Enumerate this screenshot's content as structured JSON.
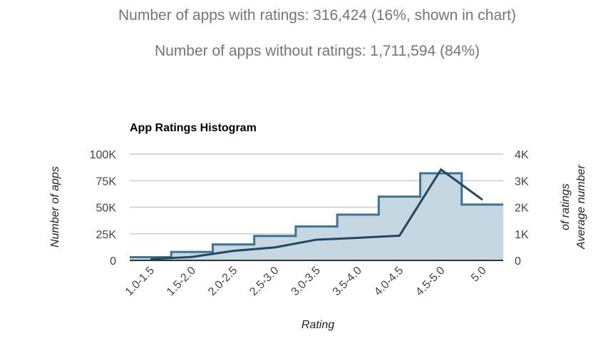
{
  "stats": {
    "with_ratings": "Number of apps with ratings: 316,424 (16%, shown in chart)",
    "without_ratings": "Number of apps without ratings: 1,711,594 (84%)"
  },
  "chart_data": {
    "type": "bar",
    "title": "App Ratings Histogram",
    "xlabel": "Rating",
    "ylabel": "Number of apps",
    "ylabel_right": [
      "of ratings",
      "Average number"
    ],
    "categories": [
      "1.0-1.5",
      "1.5-2.0",
      "2.0-2.5",
      "2.5-3.0",
      "3.0-3.5",
      "3.5-4.0",
      "4.0-4.5",
      "4.5-5.0",
      "5.0"
    ],
    "ylim": [
      0,
      100000
    ],
    "ylim_right": [
      0,
      4000
    ],
    "yticks": [
      "0",
      "25K",
      "50K",
      "75K",
      "100K"
    ],
    "yticks_right": [
      "0",
      "1K",
      "2K",
      "3K",
      "4K"
    ],
    "grid": true,
    "series": [
      {
        "type": "step-area",
        "axis": "left",
        "color": "#3d7396",
        "fill": "#c5d7e1",
        "values": [
          3000,
          8000,
          15000,
          23000,
          32000,
          43000,
          60000,
          82000,
          52500
        ]
      },
      {
        "type": "line",
        "axis": "right",
        "color": "#1f4863",
        "values": [
          50,
          130,
          360,
          490,
          780,
          850,
          930,
          3420,
          2280
        ]
      }
    ]
  }
}
